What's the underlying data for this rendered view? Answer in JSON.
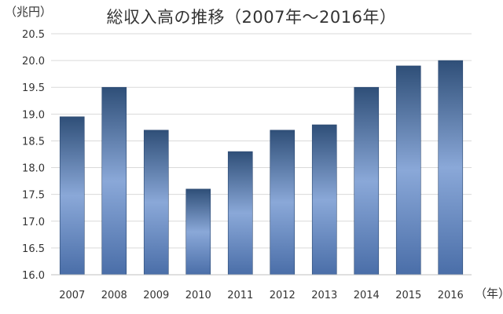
{
  "chart_data": {
    "type": "bar",
    "title": "総収入高の推移（2007年～2016年）",
    "ylabel": "（兆円）",
    "xlabel": "（年）",
    "categories": [
      "2007",
      "2008",
      "2009",
      "2010",
      "2011",
      "2012",
      "2013",
      "2014",
      "2015",
      "2016"
    ],
    "values": [
      18.95,
      19.5,
      18.7,
      17.6,
      18.3,
      18.7,
      18.8,
      19.5,
      19.9,
      20.0
    ],
    "ylim": [
      16.0,
      20.5
    ],
    "yticks": [
      "16.0",
      "16.5",
      "17.0",
      "17.5",
      "18.0",
      "18.5",
      "19.0",
      "19.5",
      "20.0",
      "20.5"
    ],
    "grid": true,
    "colors": {
      "bar_dark": "#2f4f78",
      "bar_light": "#8aa8d8",
      "grid": "#d9d9d9"
    }
  }
}
